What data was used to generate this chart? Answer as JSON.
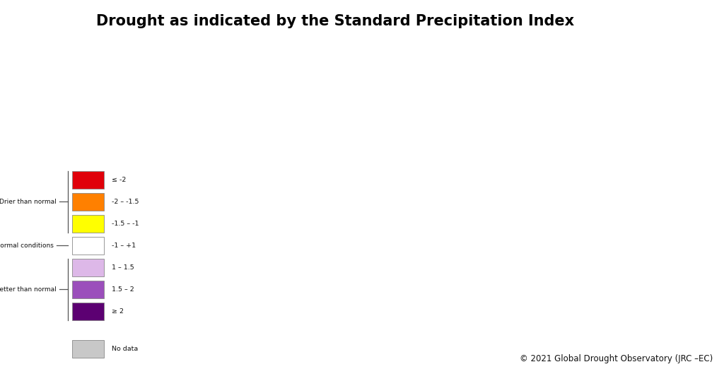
{
  "title": "Drought as indicated by the Standard Precipitation Index",
  "title_fontsize": 15,
  "copyright_text": "© 2021 Global Drought Observatory (JRC –EC)",
  "legend_items": [
    {
      "label": "≤ -2",
      "color": "#e0000a"
    },
    {
      "label": "-2 – -1.5",
      "color": "#ff8000"
    },
    {
      "label": "-1.5 – -1",
      "color": "#ffff00"
    },
    {
      "label": "-1 – +1",
      "color": "#ffffff"
    },
    {
      "label": "1 – 1.5",
      "color": "#ddb8e8"
    },
    {
      "label": "1.5 – 2",
      "color": "#9b4fbb"
    },
    {
      "label": "≥ 2",
      "color": "#5c0072"
    },
    {
      "label": "No data",
      "color": "#c8c8c8"
    }
  ],
  "map_bg_color": "#b8cde0",
  "land_color": "#f0ece6",
  "ocean_color": "#b8cde0",
  "fig_bg_color": "#ffffff",
  "title_bar_color": "#000000",
  "map_border_color": "#444444",
  "legend_text_color": "#111111",
  "legend_bracket_color": "#555555",
  "figw": 10.24,
  "figh": 5.29,
  "dpi": 100
}
